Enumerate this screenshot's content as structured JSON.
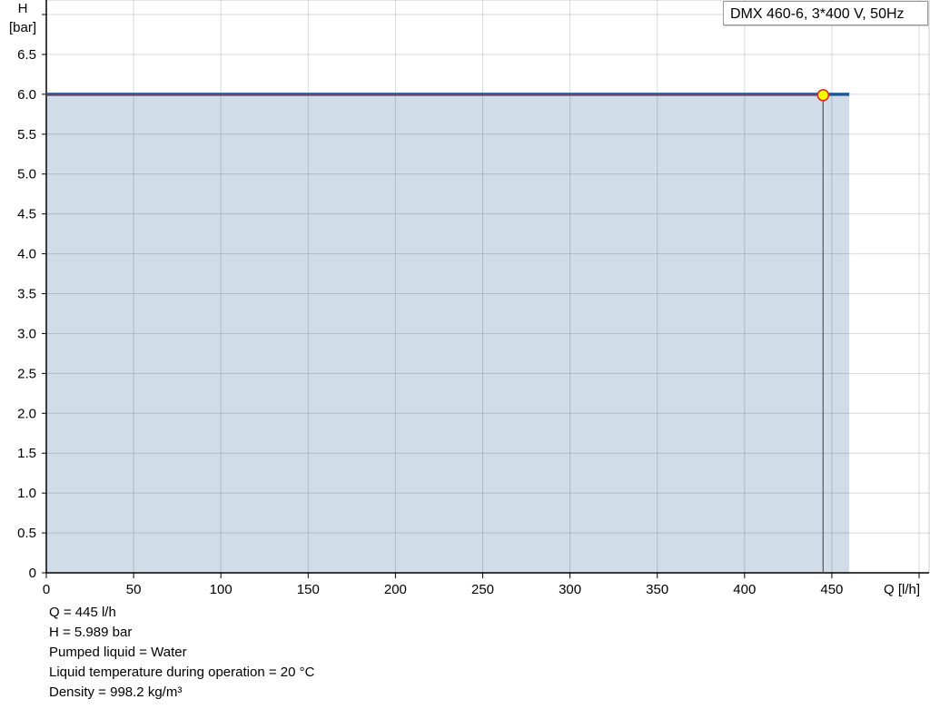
{
  "chart_data": {
    "type": "line",
    "title": "",
    "xlabel": "Q [l/h]",
    "ylabel_line1": "H",
    "ylabel_line2": "[bar]",
    "xlim": [
      0,
      500
    ],
    "ylim": [
      0,
      7.0
    ],
    "x_ticks": [
      0,
      50,
      100,
      150,
      200,
      250,
      300,
      350,
      400,
      450,
      500
    ],
    "x_tick_labels": [
      "0",
      "50",
      "100",
      "150",
      "200",
      "250",
      "300",
      "350",
      "400",
      "450",
      ""
    ],
    "y_ticks": [
      0,
      0.5,
      1.0,
      1.5,
      2.0,
      2.5,
      3.0,
      3.5,
      4.0,
      4.5,
      5.0,
      5.5,
      6.0,
      6.5,
      7.0
    ],
    "y_tick_labels": [
      "0",
      "0.5",
      "1.0",
      "1.5",
      "2.0",
      "2.5",
      "3.0",
      "3.5",
      "4.0",
      "4.5",
      "5.0",
      "5.5",
      "6.0",
      "6.5",
      ""
    ],
    "grid": true,
    "legend": "DMX 460-6, 3*400 V, 50Hz",
    "legend_placement": "top-right",
    "series": [
      {
        "name": "DMX 460-6, 3*400 V, 50Hz",
        "x": [
          0,
          460
        ],
        "y": [
          6.0,
          6.0
        ],
        "color": "#1f5a96",
        "fill": "#d0dce8"
      }
    ],
    "duty_line": {
      "x": [
        0,
        445
      ],
      "y": [
        6.0,
        6.0
      ],
      "color": "#e02020"
    },
    "operating_point": {
      "x": 445,
      "y": 5.989,
      "fill": "#ffff00",
      "stroke": "#e02020"
    }
  },
  "info": [
    "Q = 445 l/h",
    "H = 5.989 bar",
    "Pumped liquid = Water",
    "Liquid temperature during operation = 20 °C",
    "Density = 998.2 kg/m³"
  ]
}
